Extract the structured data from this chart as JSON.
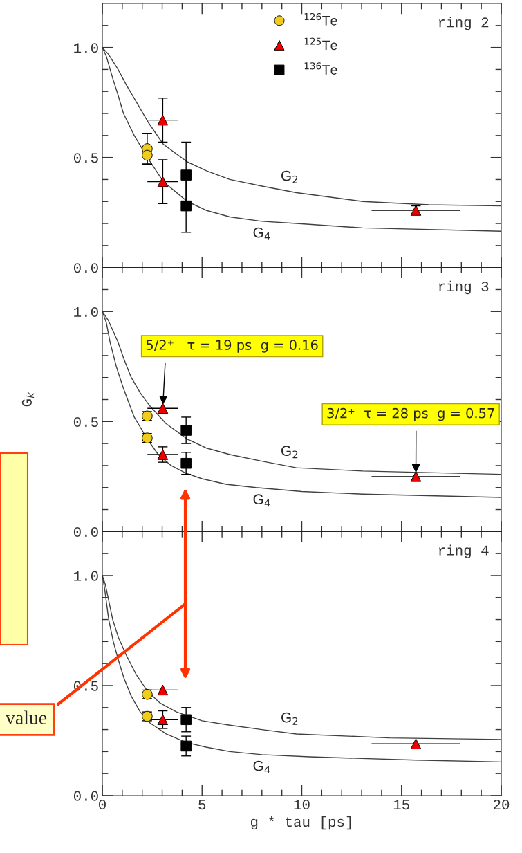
{
  "chart_data": [
    {
      "type": "scatter",
      "xlim": [
        0,
        20
      ],
      "ylim": [
        0,
        1.2
      ],
      "tick_labels": "y",
      "legend": "top",
      "xticks": [
        0,
        {
          "value": 1,
          "label": null
        },
        {
          "value": 2,
          "label": null
        },
        {
          "value": 3,
          "label": null
        },
        {
          "value": 4,
          "label": null
        },
        5,
        {
          "value": 6,
          "label": null
        },
        {
          "value": 7,
          "label": null
        },
        {
          "value": 8,
          "label": null
        },
        {
          "value": 9,
          "label": null
        },
        10,
        {
          "value": 11,
          "label": null
        },
        {
          "value": 12,
          "label": null
        },
        {
          "value": 13,
          "label": null
        },
        {
          "value": 14,
          "label": null
        },
        15,
        {
          "value": 16,
          "label": null
        },
        {
          "value": 17,
          "label": null
        },
        {
          "value": 18,
          "label": null
        },
        {
          "value": 19,
          "label": null
        },
        20
      ],
      "yticks": [
        {
          "value": 0,
          "label": "0.0"
        },
        {
          "value": 0.1,
          "label": null
        },
        {
          "value": 0.2,
          "label": null
        },
        {
          "value": 0.3,
          "label": null
        },
        {
          "value": 0.4,
          "label": null
        },
        {
          "value": 0.5,
          "label": "0.5"
        },
        {
          "value": 0.6,
          "label": null
        },
        {
          "value": 0.7,
          "label": null
        },
        {
          "value": 0.8,
          "label": null
        },
        {
          "value": 0.9,
          "label": null
        },
        {
          "value": 1,
          "label": "1.0"
        },
        {
          "value": 1.1,
          "label": null
        }
      ],
      "annotations": [
        "ring 2"
      ],
      "series": [
        {
          "type": "line",
          "name": "G$_{2}$",
          "color": "#404040",
          "x": [
            0,
            0.3,
            0.79,
            1.2,
            1.72,
            2.3,
            3.06,
            4.26,
            5.2,
            6.39,
            8.0,
            9.73,
            13.06,
            16.39,
            20
          ],
          "values": [
            1.0,
            0.97,
            0.9,
            0.83,
            0.75,
            0.66,
            0.56,
            0.48,
            0.44,
            0.4,
            0.37,
            0.34,
            0.3,
            0.285,
            0.28
          ]
        },
        {
          "type": "line",
          "name": "G$_{4}$",
          "color": "#404040",
          "x": [
            0,
            0.2,
            0.52,
            0.8,
            1.06,
            1.6,
            2.26,
            3.06,
            4.26,
            5.2,
            6.39,
            8.0,
            9.73,
            13.06,
            20
          ],
          "values": [
            1.0,
            0.96,
            0.86,
            0.78,
            0.7,
            0.6,
            0.5,
            0.39,
            0.3,
            0.26,
            0.23,
            0.21,
            0.2,
            0.18,
            0.165
          ]
        },
        {
          "name": "$^{126}$Te",
          "color": "#f0cc1c",
          "marker": "circle",
          "x": [
            2.25,
            2.25
          ],
          "values": [
            0.54,
            0.51
          ],
          "errors": [
            0.07,
            0.04
          ]
        },
        {
          "name": "$^{125}$Te",
          "color": "#ee0000",
          "marker": "triangle",
          "x": [
            3.03,
            3.03,
            15.72
          ],
          "values": [
            0.67,
            0.39,
            0.26
          ],
          "errors": [
            0.1,
            0.1,
            0.02
          ],
          "xerrors": [
            0.77,
            0.77,
            2.22
          ]
        },
        {
          "name": "$^{136}$Te",
          "color": "#000000",
          "marker": "square",
          "x": [
            4.2,
            4.2
          ],
          "values": [
            0.42,
            0.28
          ],
          "errors": [
            0.15,
            0.12
          ]
        }
      ]
    },
    {
      "type": "scatter",
      "xlim": [
        0,
        20
      ],
      "ylim": [
        0,
        1.2
      ],
      "tick_labels": "y",
      "ylabel": "G$_{k}$",
      "xticks": [
        0,
        {
          "value": 1,
          "label": null
        },
        {
          "value": 2,
          "label": null
        },
        {
          "value": 3,
          "label": null
        },
        {
          "value": 4,
          "label": null
        },
        5,
        {
          "value": 6,
          "label": null
        },
        {
          "value": 7,
          "label": null
        },
        {
          "value": 8,
          "label": null
        },
        {
          "value": 9,
          "label": null
        },
        10,
        {
          "value": 11,
          "label": null
        },
        {
          "value": 12,
          "label": null
        },
        {
          "value": 13,
          "label": null
        },
        {
          "value": 14,
          "label": null
        },
        15,
        {
          "value": 16,
          "label": null
        },
        {
          "value": 17,
          "label": null
        },
        {
          "value": 18,
          "label": null
        },
        {
          "value": 19,
          "label": null
        },
        20
      ],
      "yticks": [
        {
          "value": 0,
          "label": "0.0"
        },
        {
          "value": 0.1,
          "label": null
        },
        {
          "value": 0.2,
          "label": null
        },
        {
          "value": 0.3,
          "label": null
        },
        {
          "value": 0.4,
          "label": null
        },
        {
          "value": 0.5,
          "label": "0.5"
        },
        {
          "value": 0.6,
          "label": null
        },
        {
          "value": 0.7,
          "label": null
        },
        {
          "value": 0.8,
          "label": null
        },
        {
          "value": 0.9,
          "label": null
        },
        {
          "value": 1,
          "label": "1.0"
        },
        {
          "value": 1.1,
          "label": null
        }
      ],
      "annotations": [
        "ring 3",
        {
          "text": "5/2⁺   τ = 19 ps  g = 0.16",
          "x": 3.03,
          "y": 0.56
        },
        {
          "text": "3/2⁺  τ = 28 ps  g = 0.57",
          "x": 15.72,
          "y": 0.25
        }
      ],
      "series": [
        {
          "type": "line",
          "name": "G$_{2}$",
          "color": "#404040",
          "x": [
            0,
            0.3,
            0.79,
            1.1,
            1.45,
            1.9,
            2.39,
            3.2,
            4.26,
            5.2,
            6.39,
            8.0,
            9.73,
            13.06,
            20
          ],
          "values": [
            1.0,
            0.96,
            0.86,
            0.78,
            0.7,
            0.63,
            0.57,
            0.49,
            0.42,
            0.38,
            0.35,
            0.32,
            0.29,
            0.275,
            0.26
          ]
        },
        {
          "type": "line",
          "name": "G$_{4}$",
          "color": "#404040",
          "x": [
            0,
            0.2,
            0.39,
            0.7,
            1.06,
            1.6,
            2.26,
            2.8,
            3.45,
            4.2,
            5.0,
            6.2,
            7.7,
            10.0,
            13.06,
            20
          ],
          "values": [
            1.0,
            0.95,
            0.86,
            0.75,
            0.65,
            0.52,
            0.42,
            0.35,
            0.3,
            0.265,
            0.24,
            0.215,
            0.2,
            0.182,
            0.17,
            0.155
          ]
        },
        {
          "color": "#f0cc1c",
          "marker": "circle",
          "x": [
            2.25,
            2.25
          ],
          "values": [
            0.525,
            0.425
          ],
          "errors": [
            0.02,
            0.02
          ]
        },
        {
          "color": "#ee0000",
          "marker": "triangle",
          "x": [
            3.03,
            3.03,
            15.72
          ],
          "values": [
            0.56,
            0.35,
            0.25
          ],
          "errors": [
            null,
            0.035,
            null
          ],
          "xerrors": [
            0.77,
            0.77,
            2.22
          ]
        },
        {
          "color": "#000000",
          "marker": "square",
          "x": [
            4.2,
            4.2
          ],
          "values": [
            0.46,
            0.31
          ],
          "errors": [
            0.06,
            0.05
          ]
        }
      ]
    },
    {
      "type": "scatter",
      "xlim": [
        0,
        20
      ],
      "ylim": [
        0,
        1.2
      ],
      "xlabel": "g * tau [ps]",
      "xticks": [
        0,
        {
          "value": 1,
          "label": null
        },
        {
          "value": 2,
          "label": null
        },
        {
          "value": 3,
          "label": null
        },
        {
          "value": 4,
          "label": null
        },
        5,
        {
          "value": 6,
          "label": null
        },
        {
          "value": 7,
          "label": null
        },
        {
          "value": 8,
          "label": null
        },
        {
          "value": 9,
          "label": null
        },
        10,
        {
          "value": 11,
          "label": null
        },
        {
          "value": 12,
          "label": null
        },
        {
          "value": 13,
          "label": null
        },
        {
          "value": 14,
          "label": null
        },
        15,
        {
          "value": 16,
          "label": null
        },
        {
          "value": 17,
          "label": null
        },
        {
          "value": 18,
          "label": null
        },
        {
          "value": 19,
          "label": null
        },
        20
      ],
      "yticks": [
        {
          "value": 0,
          "label": "0.0"
        },
        {
          "value": 0.1,
          "label": null
        },
        {
          "value": 0.2,
          "label": null
        },
        {
          "value": 0.3,
          "label": null
        },
        {
          "value": 0.4,
          "label": null
        },
        {
          "value": 0.5,
          "label": "0.5"
        },
        {
          "value": 0.6,
          "label": null
        },
        {
          "value": 0.7,
          "label": null
        },
        {
          "value": 0.8,
          "label": null
        },
        {
          "value": 0.9,
          "label": null
        },
        {
          "value": 1,
          "label": "1.0"
        },
        {
          "value": 1.1,
          "label": null
        }
      ],
      "annotations": [
        "ring 4",
        "value"
      ],
      "series": [
        {
          "type": "line",
          "name": "G$_{2}$",
          "color": "#404040",
          "x": [
            0,
            0.15,
            0.52,
            0.8,
            1.19,
            1.7,
            2.26,
            2.9,
            3.72,
            5.0,
            6.39,
            8.0,
            9.73,
            14.4,
            20
          ],
          "values": [
            1.0,
            0.96,
            0.8,
            0.72,
            0.64,
            0.55,
            0.475,
            0.42,
            0.38,
            0.34,
            0.32,
            0.3,
            0.28,
            0.262,
            0.255
          ]
        },
        {
          "type": "line",
          "name": "G$_{4}$",
          "color": "#404040",
          "x": [
            0,
            0.1,
            0.32,
            0.55,
            0.79,
            1.1,
            1.46,
            1.9,
            2.39,
            3.2,
            4.26,
            5.2,
            6.39,
            8.0,
            10.4,
            15.7,
            20
          ],
          "values": [
            1.0,
            0.95,
            0.8,
            0.7,
            0.62,
            0.53,
            0.45,
            0.38,
            0.33,
            0.28,
            0.24,
            0.22,
            0.2,
            0.186,
            0.176,
            0.161,
            0.153
          ]
        },
        {
          "color": "#f0cc1c",
          "marker": "circle",
          "x": [
            2.25,
            2.25
          ],
          "values": [
            0.46,
            0.36
          ],
          "errors": [
            0.02,
            0.02
          ]
        },
        {
          "color": "#ee0000",
          "marker": "triangle",
          "x": [
            3.03,
            3.03,
            15.72
          ],
          "values": [
            0.48,
            0.345,
            0.235
          ],
          "errors": [
            null,
            0.04,
            null
          ],
          "xerrors": [
            0.77,
            0.77,
            2.22
          ]
        },
        {
          "color": "#000000",
          "marker": "square",
          "x": [
            4.2,
            4.2
          ],
          "values": [
            0.345,
            0.225
          ],
          "errors": [
            0.055,
            0.045
          ]
        }
      ]
    }
  ]
}
